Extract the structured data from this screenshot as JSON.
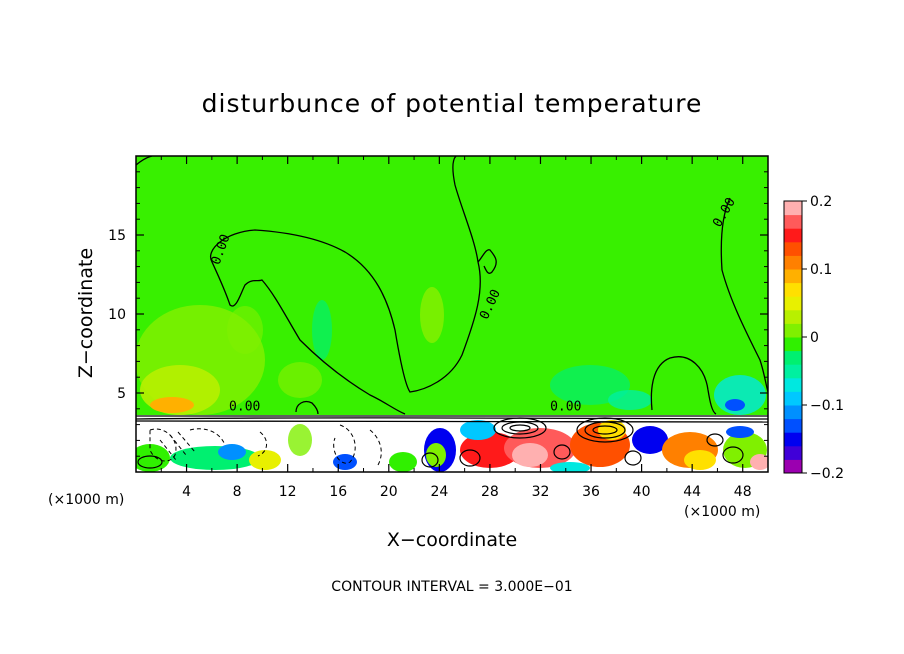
{
  "chart_data": {
    "type": "contour",
    "title": "disturbunce of potential temperature",
    "xlabel": "X−coordinate",
    "ylabel": "Z−coordinate",
    "x_unit_left": "(×1000 m)",
    "x_unit_right": "(×1000 m)",
    "xlim": [
      0,
      50
    ],
    "ylim": [
      0,
      20
    ],
    "x_ticks": [
      4,
      8,
      12,
      16,
      20,
      24,
      28,
      32,
      36,
      40,
      44,
      48
    ],
    "y_ticks": [
      5,
      10,
      15
    ],
    "contour_interval_text": "CONTOUR INTERVAL = 3.000E−01",
    "contour_labels": [
      {
        "text": "0.00",
        "x": 7.0,
        "z": 14.0
      },
      {
        "text": "0.00",
        "x": 28.3,
        "z": 10.5
      },
      {
        "text": "0.00",
        "x": 46.8,
        "z": 16.3
      },
      {
        "text": "0.00",
        "x": 8.6,
        "z": 3.9
      },
      {
        "text": "0.00",
        "x": 34.0,
        "z": 3.9
      }
    ],
    "colorbar": {
      "min": -0.2,
      "max": 0.2,
      "tick_labels": [
        "0.2",
        "0.1",
        "0",
        "−0.1",
        "−0.2"
      ],
      "colors": [
        "#9b00b0",
        "#4000d8",
        "#0000f0",
        "#0050ff",
        "#0090ff",
        "#00c8ff",
        "#00e8e0",
        "#00f0a0",
        "#00f070",
        "#30f000",
        "#80f000",
        "#b8f000",
        "#e8f000",
        "#ffe000",
        "#ffb000",
        "#ff8000",
        "#ff5000",
        "#ff1a1a",
        "#ff5a5a",
        "#ffb0b0"
      ]
    },
    "field_summary": "Near-zero (about 0 to +0.05) over most of the domain above z = 4 km; strongly perturbed layer below about z = 3.5 km with values spanning the full -0.2 to +0.2 range."
  }
}
